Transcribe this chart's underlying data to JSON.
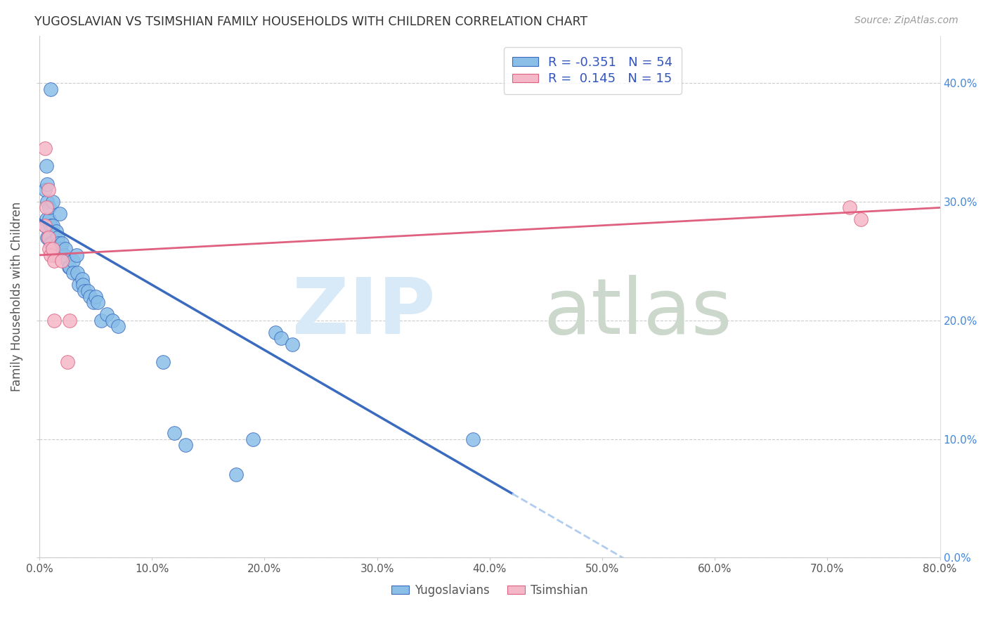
{
  "title": "YUGOSLAVIAN VS TSIMSHIAN FAMILY HOUSEHOLDS WITH CHILDREN CORRELATION CHART",
  "source": "Source: ZipAtlas.com",
  "ylabel": "Family Households with Children",
  "xlim": [
    0,
    0.8
  ],
  "ylim": [
    0,
    0.44
  ],
  "yticks": [
    0.0,
    0.1,
    0.2,
    0.3,
    0.4
  ],
  "xticks": [
    0.0,
    0.1,
    0.2,
    0.3,
    0.4,
    0.5,
    0.6,
    0.7,
    0.8
  ],
  "legend_r_yug": "-0.351",
  "legend_n_yug": "54",
  "legend_r_tsim": "0.145",
  "legend_n_tsim": "15",
  "yugoslavian_color": "#8bbfe8",
  "tsimshian_color": "#f5b8c8",
  "trend_yug_color": "#3a6bbf",
  "trend_tsim_color": "#e06080",
  "trend_ext_color": "#b0ccee",
  "yug_scatter": [
    [
      0.01,
      0.395
    ],
    [
      0.005,
      0.28
    ],
    [
      0.005,
      0.31
    ],
    [
      0.007,
      0.3
    ],
    [
      0.006,
      0.33
    ],
    [
      0.006,
      0.285
    ],
    [
      0.007,
      0.315
    ],
    [
      0.007,
      0.27
    ],
    [
      0.008,
      0.27
    ],
    [
      0.009,
      0.285
    ],
    [
      0.009,
      0.295
    ],
    [
      0.01,
      0.28
    ],
    [
      0.01,
      0.265
    ],
    [
      0.011,
      0.265
    ],
    [
      0.012,
      0.3
    ],
    [
      0.012,
      0.28
    ],
    [
      0.013,
      0.255
    ],
    [
      0.015,
      0.275
    ],
    [
      0.016,
      0.27
    ],
    [
      0.017,
      0.265
    ],
    [
      0.018,
      0.29
    ],
    [
      0.019,
      0.26
    ],
    [
      0.02,
      0.265
    ],
    [
      0.022,
      0.255
    ],
    [
      0.023,
      0.26
    ],
    [
      0.025,
      0.25
    ],
    [
      0.026,
      0.245
    ],
    [
      0.027,
      0.245
    ],
    [
      0.03,
      0.25
    ],
    [
      0.03,
      0.24
    ],
    [
      0.033,
      0.255
    ],
    [
      0.034,
      0.24
    ],
    [
      0.035,
      0.23
    ],
    [
      0.038,
      0.235
    ],
    [
      0.039,
      0.23
    ],
    [
      0.04,
      0.225
    ],
    [
      0.043,
      0.225
    ],
    [
      0.045,
      0.22
    ],
    [
      0.048,
      0.215
    ],
    [
      0.05,
      0.22
    ],
    [
      0.052,
      0.215
    ],
    [
      0.055,
      0.2
    ],
    [
      0.06,
      0.205
    ],
    [
      0.065,
      0.2
    ],
    [
      0.07,
      0.195
    ],
    [
      0.11,
      0.165
    ],
    [
      0.12,
      0.105
    ],
    [
      0.13,
      0.095
    ],
    [
      0.175,
      0.07
    ],
    [
      0.19,
      0.1
    ],
    [
      0.21,
      0.19
    ],
    [
      0.215,
      0.185
    ],
    [
      0.225,
      0.18
    ],
    [
      0.385,
      0.1
    ]
  ],
  "tsim_scatter": [
    [
      0.005,
      0.345
    ],
    [
      0.005,
      0.28
    ],
    [
      0.006,
      0.295
    ],
    [
      0.008,
      0.31
    ],
    [
      0.008,
      0.27
    ],
    [
      0.009,
      0.26
    ],
    [
      0.01,
      0.255
    ],
    [
      0.012,
      0.26
    ],
    [
      0.013,
      0.25
    ],
    [
      0.013,
      0.2
    ],
    [
      0.02,
      0.25
    ],
    [
      0.025,
      0.165
    ],
    [
      0.027,
      0.2
    ],
    [
      0.72,
      0.295
    ],
    [
      0.73,
      0.285
    ]
  ],
  "trend_yug_solid_end": 0.42,
  "trend_yug_dashed_end": 0.8
}
